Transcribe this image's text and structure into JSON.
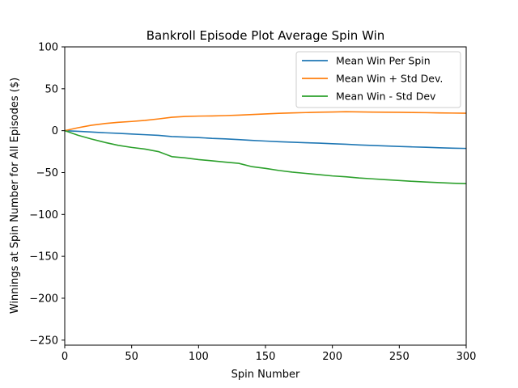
{
  "chart_data": {
    "type": "line",
    "title": "Bankroll Episode Plot Average Spin Win",
    "xlabel": "Spin Number",
    "ylabel": "Winnings at Spin Number for All Episodes ($)",
    "xlim": [
      0,
      300
    ],
    "ylim": [
      -256,
      100
    ],
    "xticks": [
      0,
      50,
      100,
      150,
      200,
      250,
      300
    ],
    "yticks": [
      100,
      50,
      0,
      -50,
      -100,
      -150,
      -200,
      -250
    ],
    "grid": false,
    "legend_position": "top-right",
    "x": [
      0,
      10,
      20,
      30,
      40,
      50,
      60,
      70,
      80,
      90,
      100,
      110,
      120,
      130,
      140,
      150,
      160,
      170,
      180,
      190,
      200,
      210,
      220,
      230,
      240,
      250,
      260,
      270,
      280,
      290,
      300
    ],
    "series": [
      {
        "name": "Mean Win Per Spin",
        "color": "#1f77b4",
        "values": [
          0,
          -0.8,
          -1.6,
          -2.5,
          -3.2,
          -4.0,
          -4.8,
          -5.6,
          -7.0,
          -7.6,
          -8.2,
          -9.2,
          -9.8,
          -10.6,
          -11.6,
          -12.4,
          -13.2,
          -13.8,
          -14.4,
          -14.9,
          -15.6,
          -16.2,
          -17.0,
          -17.6,
          -18.2,
          -18.8,
          -19.4,
          -19.8,
          -20.4,
          -20.9,
          -21.2
        ]
      },
      {
        "name": "Mean Win + Std Dev.",
        "color": "#ff7f0e",
        "values": [
          0,
          3.5,
          6.5,
          8.5,
          10.0,
          11.0,
          12.3,
          14.0,
          16.0,
          17.0,
          17.4,
          17.6,
          18.0,
          18.5,
          19.3,
          20.0,
          20.7,
          21.2,
          21.6,
          22.0,
          22.3,
          22.6,
          22.4,
          22.2,
          22.0,
          21.9,
          21.7,
          21.5,
          21.2,
          21.0,
          20.8
        ]
      },
      {
        "name": "Mean Win - Std Dev",
        "color": "#2ca02c",
        "values": [
          0,
          -5.5,
          -10.0,
          -14.0,
          -17.5,
          -20.0,
          -22.0,
          -25.0,
          -31.0,
          -32.5,
          -34.5,
          -36.0,
          -37.5,
          -39.0,
          -43.0,
          -45.0,
          -47.5,
          -49.5,
          -51.0,
          -52.5,
          -54.0,
          -55.0,
          -56.5,
          -57.5,
          -58.5,
          -59.5,
          -60.5,
          -61.3,
          -62.0,
          -62.7,
          -63.2
        ]
      }
    ]
  }
}
